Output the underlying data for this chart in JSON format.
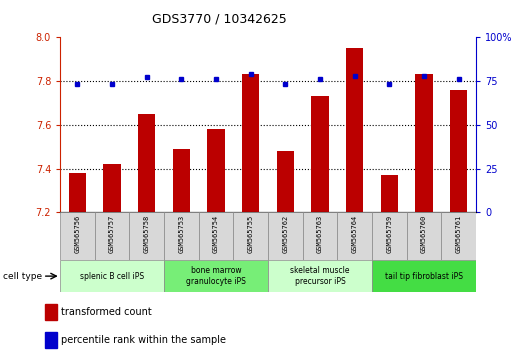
{
  "title": "GDS3770 / 10342625",
  "samples": [
    "GSM565756",
    "GSM565757",
    "GSM565758",
    "GSM565753",
    "GSM565754",
    "GSM565755",
    "GSM565762",
    "GSM565763",
    "GSM565764",
    "GSM565759",
    "GSM565760",
    "GSM565761"
  ],
  "red_values": [
    7.38,
    7.42,
    7.65,
    7.49,
    7.58,
    7.83,
    7.48,
    7.73,
    7.95,
    7.37,
    7.83,
    7.76
  ],
  "blue_values": [
    73,
    73,
    77,
    76,
    76,
    79,
    73,
    76,
    78,
    73,
    78,
    76
  ],
  "ylim_left": [
    7.2,
    8.0
  ],
  "ylim_right": [
    0,
    100
  ],
  "yticks_left": [
    7.2,
    7.4,
    7.6,
    7.8,
    8.0
  ],
  "yticks_right": [
    0,
    25,
    50,
    75,
    100
  ],
  "cell_type_groups": [
    {
      "label": "splenic B cell iPS",
      "start": 0,
      "end": 3,
      "color": "#ccffcc"
    },
    {
      "label": "bone marrow\ngranulocyte iPS",
      "start": 3,
      "end": 6,
      "color": "#77ee77"
    },
    {
      "label": "skeletal muscle\nprecursor iPS",
      "start": 6,
      "end": 9,
      "color": "#ccffcc"
    },
    {
      "label": "tail tip fibroblast iPS",
      "start": 9,
      "end": 12,
      "color": "#44dd44"
    }
  ],
  "bar_color": "#bb0000",
  "dot_color": "#0000cc",
  "bar_width": 0.5,
  "left_tick_color": "#cc2200",
  "right_tick_color": "#0000cc",
  "cell_type_label": "cell type",
  "legend_items": [
    {
      "label": "transformed count",
      "color": "#bb0000"
    },
    {
      "label": "percentile rank within the sample",
      "color": "#0000cc"
    }
  ]
}
